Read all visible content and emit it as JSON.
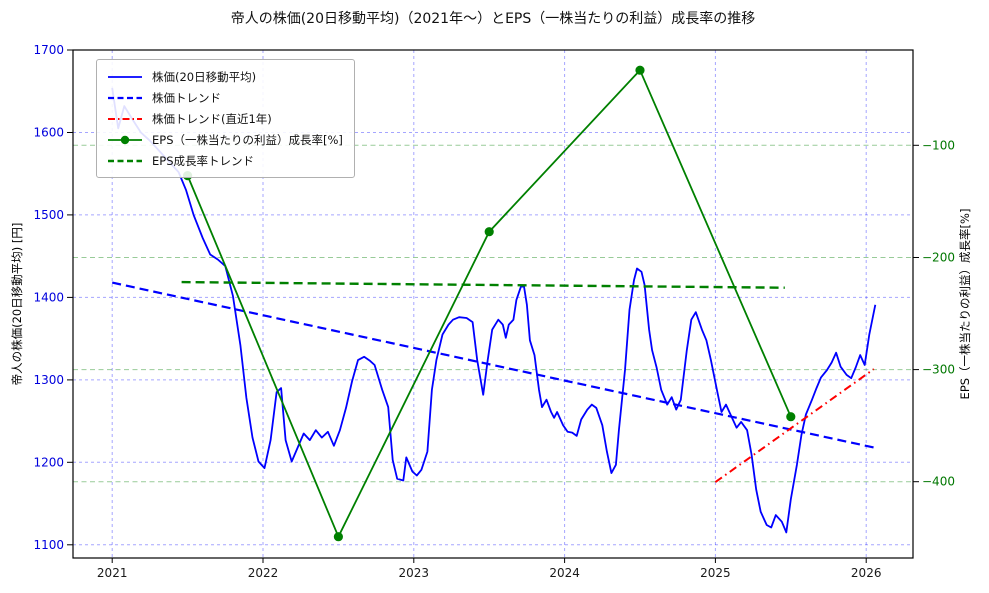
{
  "title": "帝人の株価(20日移動平均)（2021年～）とEPS（一株当たりの利益）成長率の推移",
  "chart_data": {
    "type": "line",
    "title": "帝人の株価(20日移動平均)（2021年～）とEPS（一株当たりの利益）成長率の推移",
    "x_axis": {
      "ticks": [
        2021,
        2022,
        2023,
        2024,
        2025,
        2026
      ],
      "lim": [
        2020.74,
        2026.31
      ],
      "color": "#1a1a1a"
    },
    "y_left": {
      "label": "帝人の株価(20日移動平均) [円]",
      "ticks": [
        1100,
        1200,
        1300,
        1400,
        1500,
        1600,
        1700
      ],
      "lim": [
        1084,
        1700
      ],
      "color": "#0000dd"
    },
    "y_right": {
      "label": "EPS（一株当たりの利益）成長率[%]",
      "ticks": [
        -400,
        -300,
        -200,
        -100
      ],
      "lim": [
        -468,
        -15
      ],
      "color": "#007700"
    },
    "grid": {
      "left_grid_color": "#0000ff",
      "right_grid_color": "#008000"
    },
    "series": [
      {
        "name": "株価(20日移動平均)",
        "axis": "left",
        "style": "solid",
        "color": "#0000ff",
        "width": 1.8,
        "marker": false,
        "points": [
          [
            2021.0,
            1654
          ],
          [
            2021.04,
            1605
          ],
          [
            2021.08,
            1632
          ],
          [
            2021.13,
            1617
          ],
          [
            2021.19,
            1600
          ],
          [
            2021.25,
            1590
          ],
          [
            2021.31,
            1578
          ],
          [
            2021.38,
            1564
          ],
          [
            2021.44,
            1552
          ],
          [
            2021.49,
            1530
          ],
          [
            2021.54,
            1500
          ],
          [
            2021.6,
            1472
          ],
          [
            2021.65,
            1452
          ],
          [
            2021.7,
            1446
          ],
          [
            2021.75,
            1438
          ],
          [
            2021.8,
            1402
          ],
          [
            2021.85,
            1342
          ],
          [
            2021.89,
            1278
          ],
          [
            2021.93,
            1230
          ],
          [
            2021.97,
            1201
          ],
          [
            2022.01,
            1193
          ],
          [
            2022.05,
            1227
          ],
          [
            2022.09,
            1285
          ],
          [
            2022.12,
            1290
          ],
          [
            2022.15,
            1227
          ],
          [
            2022.19,
            1201
          ],
          [
            2022.23,
            1218
          ],
          [
            2022.27,
            1235
          ],
          [
            2022.31,
            1227
          ],
          [
            2022.35,
            1239
          ],
          [
            2022.39,
            1230
          ],
          [
            2022.43,
            1237
          ],
          [
            2022.47,
            1220
          ],
          [
            2022.51,
            1239
          ],
          [
            2022.55,
            1266
          ],
          [
            2022.59,
            1298
          ],
          [
            2022.63,
            1324
          ],
          [
            2022.67,
            1328
          ],
          [
            2022.71,
            1323
          ],
          [
            2022.74,
            1318
          ],
          [
            2022.79,
            1288
          ],
          [
            2022.83,
            1267
          ],
          [
            2022.86,
            1203
          ],
          [
            2022.89,
            1180
          ],
          [
            2022.93,
            1178
          ],
          [
            2022.95,
            1206
          ],
          [
            2022.99,
            1189
          ],
          [
            2023.02,
            1184
          ],
          [
            2023.05,
            1191
          ],
          [
            2023.09,
            1213
          ],
          [
            2023.12,
            1288
          ],
          [
            2023.15,
            1324
          ],
          [
            2023.19,
            1355
          ],
          [
            2023.23,
            1367
          ],
          [
            2023.26,
            1373
          ],
          [
            2023.3,
            1376
          ],
          [
            2023.35,
            1375
          ],
          [
            2023.39,
            1370
          ],
          [
            2023.42,
            1324
          ],
          [
            2023.46,
            1282
          ],
          [
            2023.49,
            1324
          ],
          [
            2023.52,
            1361
          ],
          [
            2023.56,
            1373
          ],
          [
            2023.59,
            1367
          ],
          [
            2023.61,
            1351
          ],
          [
            2023.63,
            1367
          ],
          [
            2023.66,
            1373
          ],
          [
            2023.68,
            1397
          ],
          [
            2023.71,
            1413
          ],
          [
            2023.73,
            1414
          ],
          [
            2023.75,
            1391
          ],
          [
            2023.77,
            1348
          ],
          [
            2023.8,
            1330
          ],
          [
            2023.83,
            1288
          ],
          [
            2023.85,
            1267
          ],
          [
            2023.88,
            1276
          ],
          [
            2023.91,
            1261
          ],
          [
            2023.93,
            1254
          ],
          [
            2023.95,
            1261
          ],
          [
            2023.99,
            1245
          ],
          [
            2024.02,
            1237
          ],
          [
            2024.05,
            1236
          ],
          [
            2024.08,
            1232
          ],
          [
            2024.11,
            1252
          ],
          [
            2024.15,
            1264
          ],
          [
            2024.18,
            1270
          ],
          [
            2024.21,
            1266
          ],
          [
            2024.25,
            1245
          ],
          [
            2024.28,
            1213
          ],
          [
            2024.31,
            1187
          ],
          [
            2024.34,
            1197
          ],
          [
            2024.36,
            1239
          ],
          [
            2024.4,
            1312
          ],
          [
            2024.43,
            1385
          ],
          [
            2024.46,
            1421
          ],
          [
            2024.48,
            1435
          ],
          [
            2024.51,
            1431
          ],
          [
            2024.53,
            1415
          ],
          [
            2024.56,
            1361
          ],
          [
            2024.58,
            1336
          ],
          [
            2024.61,
            1315
          ],
          [
            2024.64,
            1288
          ],
          [
            2024.68,
            1270
          ],
          [
            2024.71,
            1279
          ],
          [
            2024.74,
            1264
          ],
          [
            2024.77,
            1276
          ],
          [
            2024.81,
            1336
          ],
          [
            2024.84,
            1373
          ],
          [
            2024.87,
            1382
          ],
          [
            2024.91,
            1361
          ],
          [
            2024.94,
            1348
          ],
          [
            2024.97,
            1324
          ],
          [
            2025.01,
            1288
          ],
          [
            2025.04,
            1261
          ],
          [
            2025.07,
            1270
          ],
          [
            2025.11,
            1254
          ],
          [
            2025.14,
            1242
          ],
          [
            2025.17,
            1249
          ],
          [
            2025.21,
            1239
          ],
          [
            2025.24,
            1209
          ],
          [
            2025.27,
            1167
          ],
          [
            2025.3,
            1140
          ],
          [
            2025.34,
            1124
          ],
          [
            2025.37,
            1121
          ],
          [
            2025.4,
            1136
          ],
          [
            2025.44,
            1128
          ],
          [
            2025.47,
            1115
          ],
          [
            2025.5,
            1155
          ],
          [
            2025.54,
            1197
          ],
          [
            2025.57,
            1233
          ],
          [
            2025.6,
            1258
          ],
          [
            2025.64,
            1276
          ],
          [
            2025.67,
            1290
          ],
          [
            2025.7,
            1303
          ],
          [
            2025.74,
            1312
          ],
          [
            2025.77,
            1321
          ],
          [
            2025.8,
            1333
          ],
          [
            2025.83,
            1316
          ],
          [
            2025.87,
            1306
          ],
          [
            2025.9,
            1302
          ],
          [
            2025.93,
            1315
          ],
          [
            2025.96,
            1330
          ],
          [
            2025.99,
            1318
          ],
          [
            2026.02,
            1355
          ],
          [
            2026.06,
            1391
          ]
        ]
      },
      {
        "name": "株価トレンド",
        "axis": "left",
        "style": "dashed",
        "color": "#0000ff",
        "width": 2.2,
        "marker": false,
        "points": [
          [
            2021.0,
            1418
          ],
          [
            2026.05,
            1218
          ]
        ]
      },
      {
        "name": "株価トレンド(直近1年)",
        "axis": "left",
        "style": "dashdot",
        "color": "#ff0000",
        "width": 2.0,
        "marker": false,
        "points": [
          [
            2025.0,
            1176
          ],
          [
            2026.05,
            1313
          ]
        ]
      },
      {
        "name": "EPS（一株当たりの利益）成長率[%]",
        "axis": "right",
        "style": "solid",
        "color": "#008000",
        "width": 1.8,
        "marker": true,
        "points": [
          [
            2021.5,
            -127
          ],
          [
            2022.5,
            -449
          ],
          [
            2023.5,
            -177
          ],
          [
            2024.5,
            -33
          ],
          [
            2025.5,
            -342
          ]
        ]
      },
      {
        "name": "EPS成長率トレンド",
        "axis": "right",
        "style": "dashed",
        "color": "#008000",
        "width": 2.4,
        "marker": false,
        "points": [
          [
            2021.46,
            -222
          ],
          [
            2025.46,
            -227
          ]
        ]
      }
    ]
  }
}
